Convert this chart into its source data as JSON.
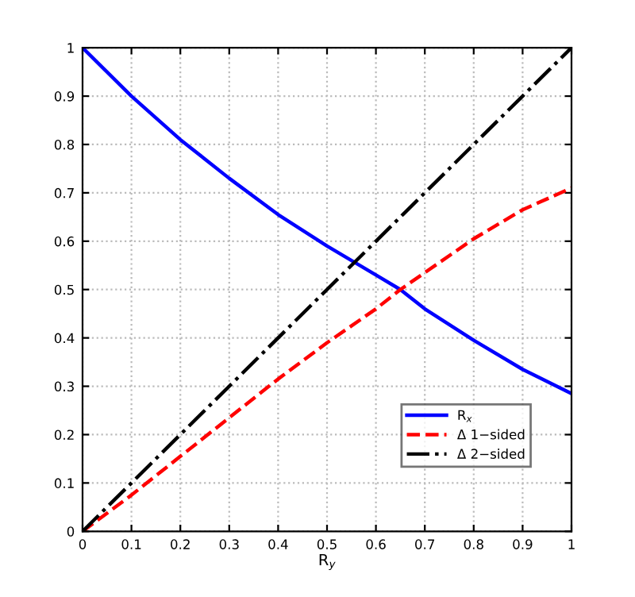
{
  "chart_data": {
    "type": "line",
    "xlabel": "R$_{y}$",
    "x": [
      0,
      0.1,
      0.2,
      0.3,
      0.4,
      0.5,
      0.6,
      0.65,
      0.7,
      0.8,
      0.9,
      1
    ],
    "series": [
      {
        "name": "R$_{x}$",
        "color": "#0000ff",
        "line_style": "solid",
        "values": [
          1,
          0.9,
          0.81,
          0.73,
          0.655,
          0.59,
          0.53,
          0.5,
          0.46,
          0.395,
          0.335,
          0.285
        ]
      },
      {
        "name": "Δ 1−sided",
        "color": "#ff0000",
        "line_style": "dashed",
        "values": [
          0,
          0.075,
          0.155,
          0.235,
          0.315,
          0.39,
          0.46,
          0.5,
          0.535,
          0.605,
          0.665,
          0.71
        ]
      },
      {
        "name": "Δ 2−sided",
        "color": "#000000",
        "line_style": "dashdot",
        "values": [
          0,
          0.1,
          0.2,
          0.3,
          0.4,
          0.5,
          0.6,
          0.65,
          0.7,
          0.8,
          0.9,
          1
        ]
      }
    ],
    "xlim": [
      0,
      1
    ],
    "ylim": [
      0,
      1
    ],
    "xticks": [
      0,
      0.1,
      0.2,
      0.3,
      0.4,
      0.5,
      0.6,
      0.7,
      0.8,
      0.9,
      1
    ],
    "yticks": [
      0,
      0.1,
      0.2,
      0.3,
      0.4,
      0.5,
      0.6,
      0.7,
      0.8,
      0.9,
      1
    ],
    "grid": true,
    "legend": "bottom right"
  }
}
